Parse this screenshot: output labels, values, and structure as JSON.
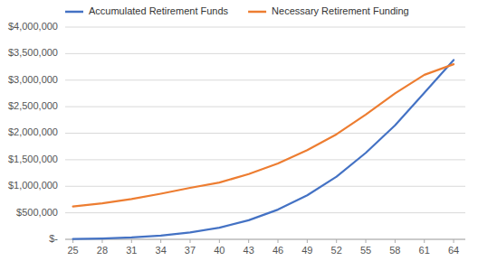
{
  "chart_data": {
    "type": "line",
    "x": [
      25,
      28,
      31,
      34,
      37,
      40,
      43,
      46,
      49,
      52,
      55,
      58,
      61,
      64
    ],
    "xlim": [
      24.2,
      65.2
    ],
    "xticks": [
      25,
      28,
      31,
      34,
      37,
      40,
      43,
      46,
      49,
      52,
      55,
      58,
      61,
      64
    ],
    "ylim": [
      0,
      4000000
    ],
    "yticks": [
      {
        "value": 0,
        "label": "$-"
      },
      {
        "value": 500000,
        "label": "$500,000"
      },
      {
        "value": 1000000,
        "label": "$1,000,000"
      },
      {
        "value": 1500000,
        "label": "$1,500,000"
      },
      {
        "value": 2000000,
        "label": "$2,000,000"
      },
      {
        "value": 2500000,
        "label": "$2,500,000"
      },
      {
        "value": 3000000,
        "label": "$3,000,000"
      },
      {
        "value": 3500000,
        "label": "$3,500,000"
      },
      {
        "value": 4000000,
        "label": "$4,000,000"
      }
    ],
    "grid": true,
    "legend": "upper left",
    "series": [
      {
        "name": "Accumulated Retirement Funds",
        "color": "#4472C4",
        "values": [
          5000,
          15000,
          35000,
          70000,
          130000,
          220000,
          360000,
          560000,
          830000,
          1180000,
          1630000,
          2150000,
          2760000,
          3380000
        ]
      },
      {
        "name": "Necessary Retirement Funding",
        "color": "#ED7D31",
        "values": [
          620000,
          680000,
          760000,
          860000,
          970000,
          1070000,
          1230000,
          1430000,
          1680000,
          1980000,
          2350000,
          2750000,
          3100000,
          3300000
        ]
      }
    ]
  }
}
